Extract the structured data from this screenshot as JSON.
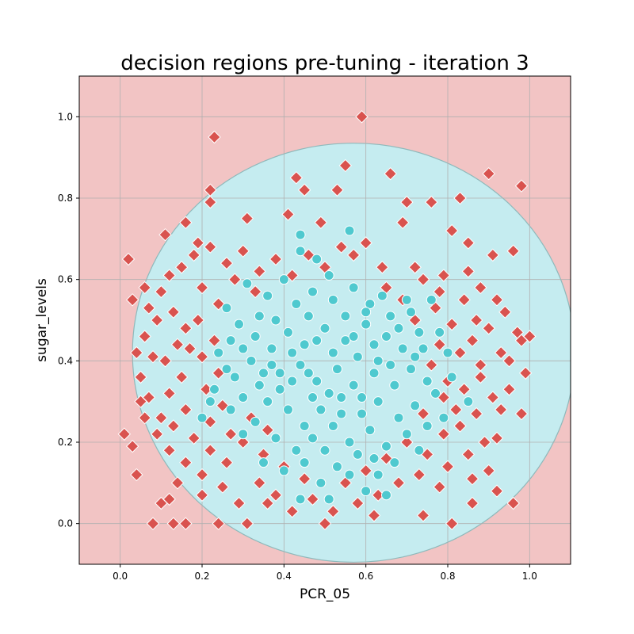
{
  "chart_data": {
    "type": "scatter",
    "title": "decision regions pre-tuning - iteration  3",
    "xlabel": "PCR_05",
    "ylabel": "sugar_levels",
    "xlim": [
      -0.1,
      1.1
    ],
    "ylim": [
      -0.1,
      1.1
    ],
    "xticks": [
      "0.0",
      "0.2",
      "0.4",
      "0.6",
      "0.8",
      "1.0"
    ],
    "yticks": [
      "0.0",
      "0.2",
      "0.4",
      "0.6",
      "0.8",
      "1.0"
    ],
    "grid": true,
    "legend": "none",
    "region": {
      "shape": "ellipse",
      "center": [
        0.57,
        0.42
      ],
      "semi_axes": [
        0.54,
        0.515
      ],
      "bottom_clip": -0.1
    },
    "colors": {
      "outer_region": "#f2c4c4",
      "inner_region": "#c5ecf0",
      "boundary": "#8fb9bb",
      "class_a": "#d9534f",
      "class_b": "#4fc9cf"
    },
    "series": [
      {
        "marker": "diamond",
        "color": "#d9534f",
        "points": [
          [
            0.23,
            0.95
          ],
          [
            0.59,
            1.0
          ],
          [
            0.98,
            0.83
          ],
          [
            0.9,
            0.86
          ],
          [
            0.22,
            0.82
          ],
          [
            0.22,
            0.79
          ],
          [
            0.83,
            0.8
          ],
          [
            0.55,
            0.88
          ],
          [
            0.45,
            0.82
          ],
          [
            0.53,
            0.82
          ],
          [
            0.43,
            0.85
          ],
          [
            0.31,
            0.75
          ],
          [
            0.41,
            0.76
          ],
          [
            0.02,
            0.65
          ],
          [
            0.03,
            0.55
          ],
          [
            0.01,
            0.22
          ],
          [
            0.03,
            0.19
          ],
          [
            0.04,
            0.12
          ],
          [
            0.08,
            0.0
          ],
          [
            0.13,
            0.0
          ],
          [
            0.16,
            0.0
          ],
          [
            0.24,
            0.0
          ],
          [
            0.31,
            0.0
          ],
          [
            0.5,
            0.0
          ],
          [
            0.81,
            0.0
          ],
          [
            0.74,
            0.02
          ],
          [
            0.96,
            0.05
          ],
          [
            0.86,
            0.05
          ],
          [
            0.16,
            0.74
          ],
          [
            0.11,
            0.71
          ],
          [
            0.19,
            0.69
          ],
          [
            0.96,
            0.67
          ],
          [
            0.91,
            0.66
          ],
          [
            0.06,
            0.58
          ],
          [
            0.97,
            0.47
          ],
          [
            0.98,
            0.45
          ],
          [
            1.0,
            0.46
          ],
          [
            0.99,
            0.37
          ],
          [
            0.98,
            0.27
          ],
          [
            0.92,
            0.21
          ],
          [
            0.9,
            0.13
          ],
          [
            0.92,
            0.08
          ],
          [
            0.12,
            0.06
          ],
          [
            0.1,
            0.05
          ],
          [
            0.2,
            0.07
          ],
          [
            0.6,
            0.69
          ],
          [
            0.66,
            0.86
          ],
          [
            0.7,
            0.79
          ],
          [
            0.76,
            0.79
          ],
          [
            0.81,
            0.72
          ],
          [
            0.85,
            0.69
          ],
          [
            0.57,
            0.66
          ],
          [
            0.64,
            0.63
          ],
          [
            0.72,
            0.63
          ],
          [
            0.79,
            0.61
          ],
          [
            0.85,
            0.62
          ],
          [
            0.88,
            0.58
          ],
          [
            0.92,
            0.55
          ],
          [
            0.94,
            0.52
          ],
          [
            0.9,
            0.48
          ],
          [
            0.86,
            0.45
          ],
          [
            0.93,
            0.42
          ],
          [
            0.95,
            0.4
          ],
          [
            0.88,
            0.36
          ],
          [
            0.84,
            0.33
          ],
          [
            0.91,
            0.31
          ],
          [
            0.87,
            0.27
          ],
          [
            0.83,
            0.24
          ],
          [
            0.89,
            0.2
          ],
          [
            0.85,
            0.17
          ],
          [
            0.8,
            0.14
          ],
          [
            0.86,
            0.11
          ],
          [
            0.78,
            0.09
          ],
          [
            0.73,
            0.12
          ],
          [
            0.68,
            0.1
          ],
          [
            0.63,
            0.07
          ],
          [
            0.58,
            0.05
          ],
          [
            0.52,
            0.03
          ],
          [
            0.47,
            0.06
          ],
          [
            0.42,
            0.03
          ],
          [
            0.38,
            0.07
          ],
          [
            0.34,
            0.1
          ],
          [
            0.29,
            0.05
          ],
          [
            0.25,
            0.09
          ],
          [
            0.2,
            0.12
          ],
          [
            0.16,
            0.15
          ],
          [
            0.12,
            0.18
          ],
          [
            0.09,
            0.22
          ],
          [
            0.06,
            0.26
          ],
          [
            0.07,
            0.31
          ],
          [
            0.05,
            0.36
          ],
          [
            0.08,
            0.41
          ],
          [
            0.06,
            0.46
          ],
          [
            0.09,
            0.5
          ],
          [
            0.07,
            0.53
          ],
          [
            0.1,
            0.57
          ],
          [
            0.12,
            0.61
          ],
          [
            0.15,
            0.63
          ],
          [
            0.18,
            0.66
          ],
          [
            0.22,
            0.68
          ],
          [
            0.26,
            0.64
          ],
          [
            0.3,
            0.67
          ],
          [
            0.34,
            0.62
          ],
          [
            0.38,
            0.65
          ],
          [
            0.42,
            0.61
          ],
          [
            0.46,
            0.66
          ],
          [
            0.5,
            0.63
          ],
          [
            0.54,
            0.68
          ],
          [
            0.13,
            0.52
          ],
          [
            0.16,
            0.48
          ],
          [
            0.14,
            0.44
          ],
          [
            0.11,
            0.4
          ],
          [
            0.15,
            0.36
          ],
          [
            0.12,
            0.32
          ],
          [
            0.16,
            0.28
          ],
          [
            0.13,
            0.24
          ],
          [
            0.18,
            0.21
          ],
          [
            0.22,
            0.18
          ],
          [
            0.26,
            0.15
          ],
          [
            0.3,
            0.2
          ],
          [
            0.35,
            0.17
          ],
          [
            0.4,
            0.14
          ],
          [
            0.45,
            0.11
          ],
          [
            0.55,
            0.1
          ],
          [
            0.6,
            0.13
          ],
          [
            0.65,
            0.16
          ],
          [
            0.7,
            0.2
          ],
          [
            0.75,
            0.17
          ],
          [
            0.79,
            0.22
          ],
          [
            0.82,
            0.28
          ],
          [
            0.8,
            0.35
          ],
          [
            0.83,
            0.42
          ],
          [
            0.81,
            0.49
          ],
          [
            0.84,
            0.55
          ],
          [
            0.78,
            0.57
          ],
          [
            0.74,
            0.6
          ],
          [
            0.69,
            0.55
          ],
          [
            0.65,
            0.58
          ],
          [
            0.2,
            0.58
          ],
          [
            0.24,
            0.54
          ],
          [
            0.19,
            0.5
          ],
          [
            0.23,
            0.45
          ],
          [
            0.2,
            0.41
          ],
          [
            0.24,
            0.37
          ],
          [
            0.21,
            0.33
          ],
          [
            0.25,
            0.29
          ],
          [
            0.22,
            0.25
          ],
          [
            0.27,
            0.22
          ],
          [
            0.32,
            0.26
          ],
          [
            0.36,
            0.23
          ],
          [
            0.78,
            0.44
          ],
          [
            0.76,
            0.39
          ],
          [
            0.79,
            0.31
          ],
          [
            0.74,
            0.27
          ],
          [
            0.77,
            0.53
          ],
          [
            0.72,
            0.5
          ],
          [
            0.28,
            0.6
          ],
          [
            0.33,
            0.57
          ],
          [
            0.04,
            0.42
          ],
          [
            0.05,
            0.3
          ],
          [
            0.93,
            0.28
          ],
          [
            0.95,
            0.33
          ],
          [
            0.17,
            0.43
          ],
          [
            0.1,
            0.26
          ],
          [
            0.14,
            0.1
          ],
          [
            0.88,
            0.39
          ],
          [
            0.87,
            0.5
          ],
          [
            0.62,
            0.02
          ],
          [
            0.36,
            0.05
          ],
          [
            0.69,
            0.74
          ],
          [
            0.49,
            0.74
          ]
        ]
      },
      {
        "marker": "circle",
        "color": "#4fc9cf",
        "points": [
          [
            0.56,
            0.72
          ],
          [
            0.48,
            0.65
          ],
          [
            0.44,
            0.67
          ],
          [
            0.51,
            0.61
          ],
          [
            0.4,
            0.6
          ],
          [
            0.36,
            0.56
          ],
          [
            0.31,
            0.59
          ],
          [
            0.26,
            0.53
          ],
          [
            0.29,
            0.49
          ],
          [
            0.33,
            0.46
          ],
          [
            0.38,
            0.5
          ],
          [
            0.43,
            0.54
          ],
          [
            0.47,
            0.57
          ],
          [
            0.52,
            0.55
          ],
          [
            0.57,
            0.58
          ],
          [
            0.61,
            0.54
          ],
          [
            0.66,
            0.51
          ],
          [
            0.7,
            0.55
          ],
          [
            0.73,
            0.47
          ],
          [
            0.69,
            0.43
          ],
          [
            0.65,
            0.46
          ],
          [
            0.6,
            0.49
          ],
          [
            0.55,
            0.45
          ],
          [
            0.5,
            0.48
          ],
          [
            0.45,
            0.44
          ],
          [
            0.41,
            0.47
          ],
          [
            0.37,
            0.43
          ],
          [
            0.32,
            0.4
          ],
          [
            0.28,
            0.36
          ],
          [
            0.3,
            0.31
          ],
          [
            0.34,
            0.34
          ],
          [
            0.39,
            0.37
          ],
          [
            0.44,
            0.39
          ],
          [
            0.48,
            0.35
          ],
          [
            0.53,
            0.38
          ],
          [
            0.58,
            0.41
          ],
          [
            0.62,
            0.37
          ],
          [
            0.67,
            0.34
          ],
          [
            0.71,
            0.38
          ],
          [
            0.75,
            0.35
          ],
          [
            0.72,
            0.29
          ],
          [
            0.68,
            0.26
          ],
          [
            0.63,
            0.3
          ],
          [
            0.59,
            0.27
          ],
          [
            0.54,
            0.31
          ],
          [
            0.49,
            0.28
          ],
          [
            0.45,
            0.24
          ],
          [
            0.41,
            0.28
          ],
          [
            0.36,
            0.3
          ],
          [
            0.33,
            0.25
          ],
          [
            0.38,
            0.21
          ],
          [
            0.43,
            0.18
          ],
          [
            0.47,
            0.21
          ],
          [
            0.52,
            0.24
          ],
          [
            0.56,
            0.2
          ],
          [
            0.61,
            0.23
          ],
          [
            0.65,
            0.19
          ],
          [
            0.7,
            0.22
          ],
          [
            0.67,
            0.15
          ],
          [
            0.63,
            0.12
          ],
          [
            0.58,
            0.17
          ],
          [
            0.53,
            0.14
          ],
          [
            0.49,
            0.1
          ],
          [
            0.44,
            0.06
          ],
          [
            0.51,
            0.06
          ],
          [
            0.6,
            0.08
          ],
          [
            0.65,
            0.07
          ],
          [
            0.4,
            0.13
          ],
          [
            0.35,
            0.15
          ],
          [
            0.3,
            0.22
          ],
          [
            0.27,
            0.28
          ],
          [
            0.24,
            0.42
          ],
          [
            0.27,
            0.45
          ],
          [
            0.23,
            0.33
          ],
          [
            0.78,
            0.47
          ],
          [
            0.8,
            0.42
          ],
          [
            0.77,
            0.32
          ],
          [
            0.79,
            0.26
          ],
          [
            0.74,
            0.43
          ],
          [
            0.76,
            0.55
          ],
          [
            0.64,
            0.56
          ],
          [
            0.55,
            0.51
          ],
          [
            0.46,
            0.51
          ],
          [
            0.42,
            0.42
          ],
          [
            0.52,
            0.42
          ],
          [
            0.57,
            0.34
          ],
          [
            0.47,
            0.31
          ],
          [
            0.39,
            0.33
          ],
          [
            0.34,
            0.51
          ],
          [
            0.3,
            0.43
          ],
          [
            0.62,
            0.44
          ],
          [
            0.68,
            0.48
          ],
          [
            0.72,
            0.41
          ],
          [
            0.66,
            0.39
          ],
          [
            0.59,
            0.31
          ],
          [
            0.54,
            0.27
          ],
          [
            0.5,
            0.18
          ],
          [
            0.45,
            0.15
          ],
          [
            0.56,
            0.12
          ],
          [
            0.62,
            0.16
          ],
          [
            0.44,
            0.71
          ],
          [
            0.6,
            0.52
          ],
          [
            0.71,
            0.52
          ],
          [
            0.81,
            0.36
          ],
          [
            0.85,
            0.3
          ],
          [
            0.46,
            0.37
          ],
          [
            0.51,
            0.32
          ],
          [
            0.37,
            0.39
          ],
          [
            0.42,
            0.35
          ],
          [
            0.57,
            0.46
          ],
          [
            0.63,
            0.4
          ],
          [
            0.48,
            0.45
          ],
          [
            0.35,
            0.37
          ],
          [
            0.26,
            0.38
          ],
          [
            0.2,
            0.26
          ],
          [
            0.22,
            0.3
          ],
          [
            0.75,
            0.24
          ],
          [
            0.73,
            0.18
          ]
        ]
      }
    ]
  }
}
